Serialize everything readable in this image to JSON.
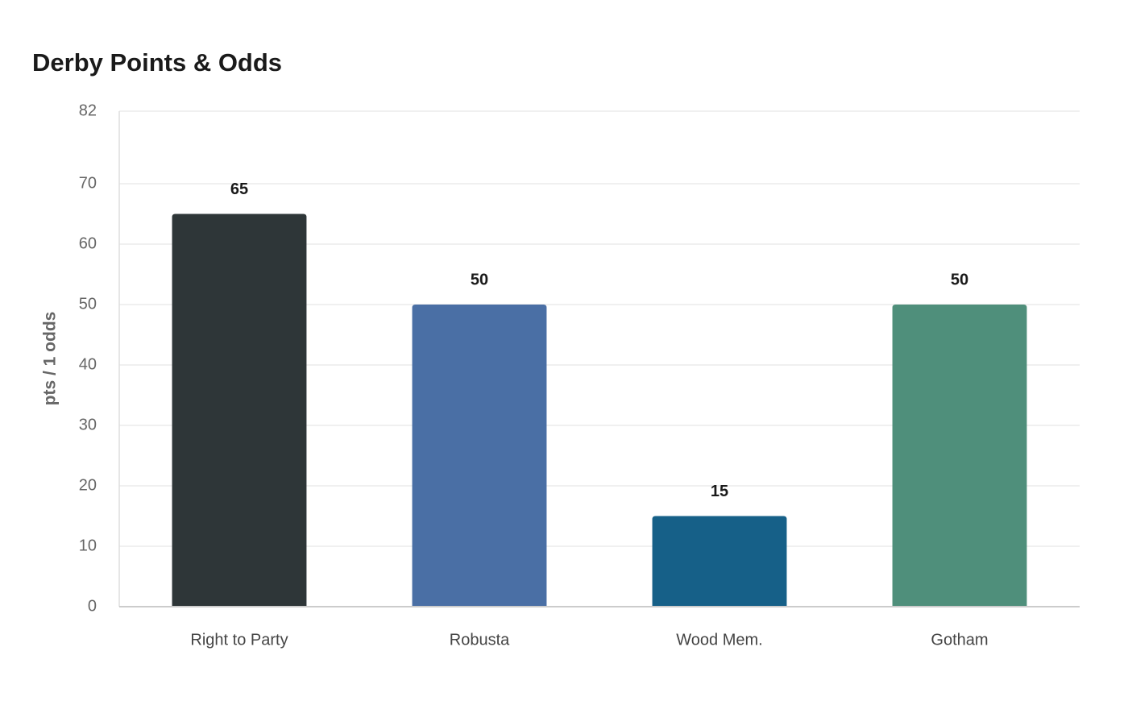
{
  "chart_data": {
    "type": "bar",
    "title": "Derby Points & Odds",
    "y_label": "pts / 1 odds",
    "categories": [
      "Right to Party",
      "Robusta",
      "Wood Mem.",
      "Gotham"
    ],
    "values": [
      65,
      50,
      15,
      50
    ],
    "colors": [
      "#2e3638",
      "#4a6fa5",
      "#166088",
      "#4f8f7b"
    ],
    "ylim": [
      0,
      82
    ],
    "yticks": [
      0,
      10,
      20,
      30,
      40,
      50,
      60,
      70,
      82
    ],
    "grid": true,
    "data_labels": true
  }
}
